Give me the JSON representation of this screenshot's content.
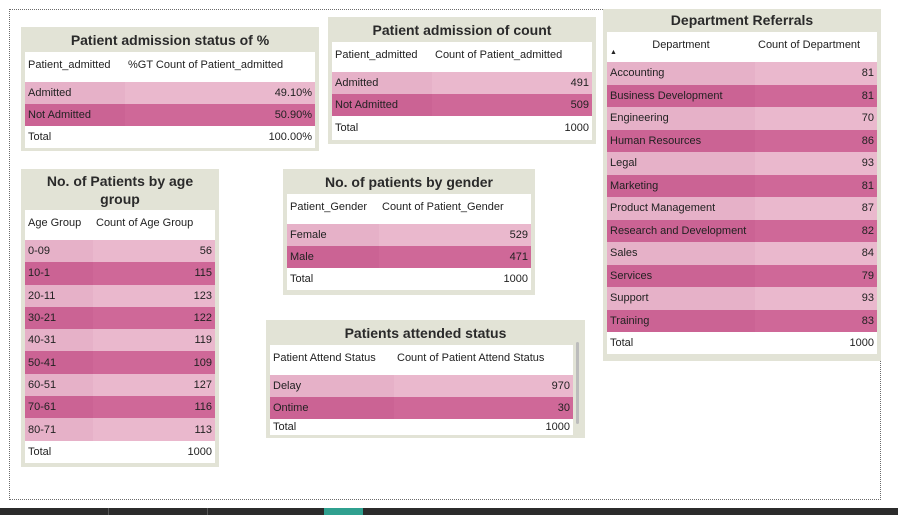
{
  "admission_pct": {
    "title": "Patient admission status of %",
    "headers": [
      "Patient_admitted",
      "%GT Count of Patient_admitted"
    ],
    "rows": [
      {
        "label": "Admitted",
        "value": "49.10%"
      },
      {
        "label": "Not Admitted",
        "value": "50.90%"
      }
    ],
    "total": {
      "label": "Total",
      "value": "100.00%"
    }
  },
  "admission_count": {
    "title": "Patient admission of count",
    "headers": [
      "Patient_admitted",
      "Count of Patient_admitted"
    ],
    "rows": [
      {
        "label": "Admitted",
        "value": "491"
      },
      {
        "label": "Not Admitted",
        "value": "509"
      }
    ],
    "total": {
      "label": "Total",
      "value": "1000"
    }
  },
  "department": {
    "title": "Department Referrals",
    "headers": [
      "Department",
      "Count of Department"
    ],
    "sort_icon": "sort-ascending-icon",
    "rows": [
      {
        "label": "Accounting",
        "value": "81"
      },
      {
        "label": "Business Development",
        "value": "81"
      },
      {
        "label": "Engineering",
        "value": "70"
      },
      {
        "label": "Human Resources",
        "value": "86"
      },
      {
        "label": "Legal",
        "value": "93"
      },
      {
        "label": "Marketing",
        "value": "81"
      },
      {
        "label": "Product Management",
        "value": "87"
      },
      {
        "label": "Research and Development",
        "value": "82"
      },
      {
        "label": "Sales",
        "value": "84"
      },
      {
        "label": "Services",
        "value": "79"
      },
      {
        "label": "Support",
        "value": "93"
      },
      {
        "label": "Training",
        "value": "83"
      }
    ],
    "total": {
      "label": "Total",
      "value": "1000"
    }
  },
  "age": {
    "title": "No. of Patients by age group",
    "headers": [
      "Age Group",
      "Count of Age Group"
    ],
    "rows": [
      {
        "label": "0-09",
        "value": "56"
      },
      {
        "label": "10-1",
        "value": "115"
      },
      {
        "label": "20-11",
        "value": "123"
      },
      {
        "label": "30-21",
        "value": "122"
      },
      {
        "label": "40-31",
        "value": "119"
      },
      {
        "label": "50-41",
        "value": "109"
      },
      {
        "label": "60-51",
        "value": "127"
      },
      {
        "label": "70-61",
        "value": "116"
      },
      {
        "label": "80-71",
        "value": "113"
      }
    ],
    "total": {
      "label": "Total",
      "value": "1000"
    }
  },
  "gender": {
    "title": "No. of patients by gender",
    "headers": [
      "Patient_Gender",
      "Count of Patient_Gender"
    ],
    "rows": [
      {
        "label": "Female",
        "value": "529"
      },
      {
        "label": "Male",
        "value": "471"
      }
    ],
    "total": {
      "label": "Total",
      "value": "1000"
    }
  },
  "attend": {
    "title": "Patients attended status",
    "headers": [
      "Patient Attend Status",
      "Count of Patient Attend Status"
    ],
    "rows": [
      {
        "label": "Delay",
        "value": "970"
      },
      {
        "label": "Ontime",
        "value": "30"
      }
    ],
    "total": {
      "label": "Total",
      "value": "1000"
    }
  },
  "colors": {
    "row_light": "#e6b1c8",
    "row_dark": "#cb6394",
    "panel_bg": "#e2e3d6",
    "page_tab_active": "#2fa08f"
  }
}
